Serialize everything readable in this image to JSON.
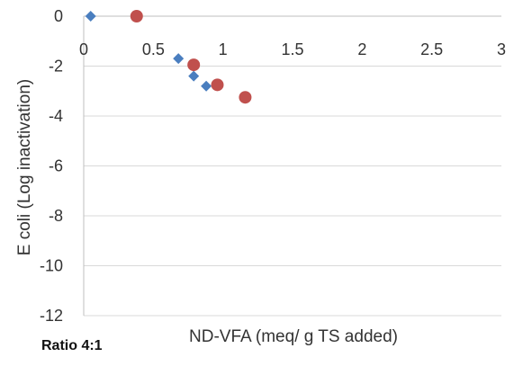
{
  "caption": "Ratio 4:1",
  "chart_data": {
    "type": "scatter",
    "title": "",
    "xlabel": "ND-VFA (meq/ g TS added)",
    "ylabel": "E coli (Log inactivation)",
    "xlim": [
      0,
      3
    ],
    "ylim": [
      -12,
      0
    ],
    "xticks": [
      0,
      0.5,
      1,
      1.5,
      2,
      2.5,
      3
    ],
    "yticks": [
      0,
      -2,
      -4,
      -6,
      -8,
      -10,
      -12
    ],
    "xtick_labels": [
      "0",
      "0.5",
      "1",
      "1.5",
      "2",
      "2.5",
      "3"
    ],
    "ytick_labels": [
      "0",
      "-2",
      "-4",
      "-6",
      "-8",
      "-10",
      "-12"
    ],
    "grid": "horizontal",
    "x_axis_position": "top",
    "legend": "none",
    "series": [
      {
        "marker": "diamond",
        "color": "#4a7ebf",
        "points": [
          [
            0.05,
            0
          ],
          [
            0.68,
            -1.7
          ],
          [
            0.79,
            -2.4
          ],
          [
            0.88,
            -2.8
          ]
        ]
      },
      {
        "marker": "circle",
        "color": "#c0504d",
        "points": [
          [
            0.38,
            0
          ],
          [
            0.79,
            -1.95
          ],
          [
            0.96,
            -2.75
          ],
          [
            1.16,
            -3.25
          ]
        ]
      }
    ]
  }
}
